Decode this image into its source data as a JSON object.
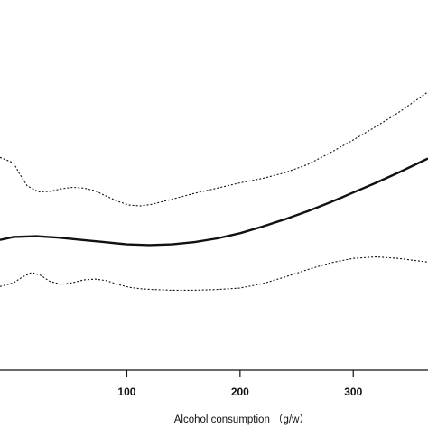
{
  "chart_data": {
    "type": "line",
    "title": "",
    "xlabel": "Alcohol consumption （g/w）",
    "ylabel": "",
    "xlim": [
      -12,
      366
    ],
    "ylim": [
      0,
      1
    ],
    "x_ticks": [
      100,
      200,
      300
    ],
    "grid": false,
    "series": [
      {
        "style": "solid",
        "x": [
          -12,
          0,
          20,
          40,
          60,
          80,
          100,
          120,
          140,
          160,
          180,
          200,
          220,
          240,
          260,
          280,
          300,
          320,
          340,
          366
        ],
        "y": [
          0.352,
          0.36,
          0.362,
          0.358,
          0.352,
          0.346,
          0.34,
          0.338,
          0.34,
          0.346,
          0.356,
          0.37,
          0.388,
          0.408,
          0.43,
          0.454,
          0.48,
          0.506,
          0.534,
          0.572
        ]
      },
      {
        "style": "dotted",
        "x": [
          -12,
          0,
          5,
          12,
          22,
          32,
          42,
          52,
          62,
          72,
          82,
          92,
          102,
          112,
          122,
          140,
          160,
          180,
          200,
          220,
          240,
          260,
          280,
          300,
          320,
          340,
          366
        ],
        "y": [
          0.575,
          0.56,
          0.532,
          0.498,
          0.482,
          0.483,
          0.49,
          0.494,
          0.492,
          0.485,
          0.47,
          0.456,
          0.446,
          0.444,
          0.448,
          0.462,
          0.478,
          0.492,
          0.506,
          0.518,
          0.534,
          0.556,
          0.588,
          0.622,
          0.658,
          0.696,
          0.752
        ]
      },
      {
        "style": "dotted",
        "x": [
          -12,
          0,
          8,
          16,
          24,
          32,
          42,
          52,
          62,
          72,
          82,
          92,
          102,
          112,
          122,
          140,
          160,
          180,
          200,
          220,
          240,
          260,
          280,
          300,
          320,
          340,
          366
        ],
        "y": [
          0.226,
          0.236,
          0.252,
          0.264,
          0.256,
          0.24,
          0.232,
          0.236,
          0.244,
          0.246,
          0.242,
          0.232,
          0.224,
          0.22,
          0.218,
          0.216,
          0.216,
          0.218,
          0.222,
          0.234,
          0.252,
          0.272,
          0.29,
          0.302,
          0.306,
          0.302,
          0.292
        ]
      }
    ]
  }
}
